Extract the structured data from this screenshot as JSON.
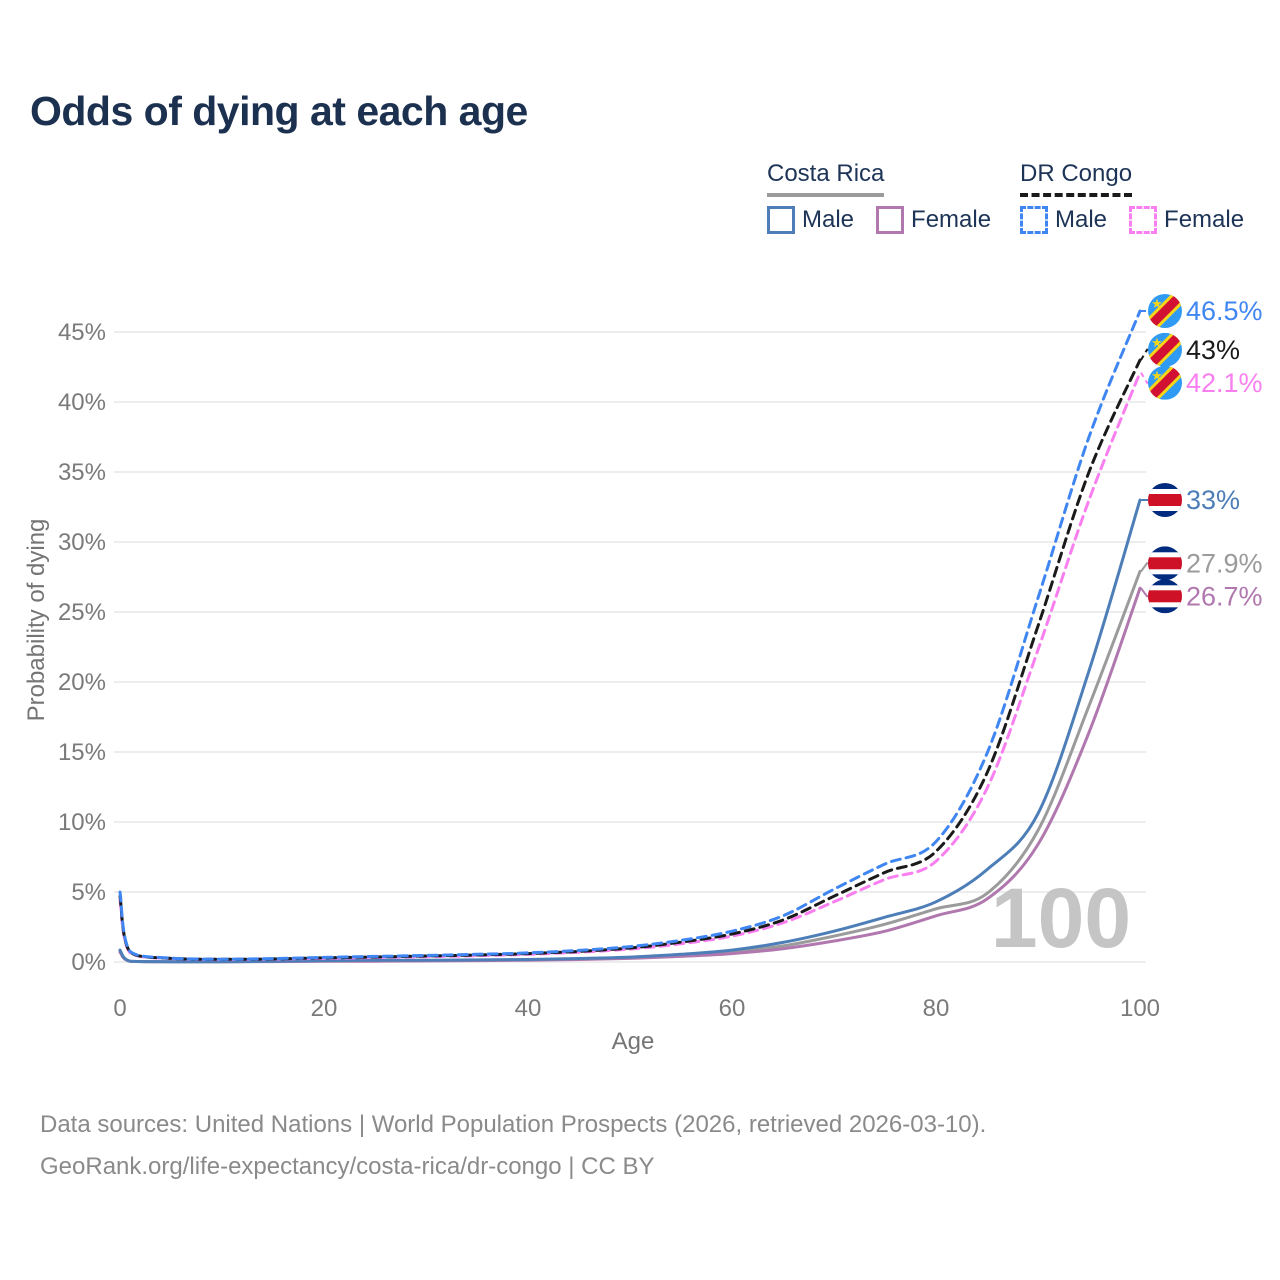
{
  "title": "Odds of dying at each age",
  "legend": {
    "groups": [
      {
        "name": "Costa Rica",
        "line_style": "solid",
        "underline_color": "#9b9b9b",
        "items": [
          {
            "label": "Male",
            "color": "#4d7eb8"
          },
          {
            "label": "Female",
            "color": "#b078ae"
          }
        ]
      },
      {
        "name": "DR Congo",
        "line_style": "dashed",
        "underline_color": "#1a1a1a",
        "items": [
          {
            "label": "Male",
            "color": "#3f86f2"
          },
          {
            "label": "Female",
            "color": "#f97ff0"
          }
        ]
      }
    ]
  },
  "chart_data": {
    "type": "line",
    "title": "Odds of dying at each age",
    "xlabel": "Age",
    "ylabel": "Probability of dying",
    "xlim": [
      0,
      100
    ],
    "ylim_percent": [
      0,
      47.5
    ],
    "xticks": [
      0,
      20,
      40,
      60,
      80,
      100
    ],
    "ytick_labels": [
      "0%",
      "5%",
      "10%",
      "15%",
      "20%",
      "25%",
      "30%",
      "35%",
      "40%",
      "45%"
    ],
    "grid": "horizontal",
    "watermark": "100",
    "ages": [
      0,
      1,
      5,
      10,
      15,
      20,
      25,
      30,
      35,
      40,
      45,
      50,
      55,
      60,
      65,
      70,
      75,
      80,
      85,
      90,
      95,
      100
    ],
    "series": [
      {
        "name": "Costa Rica — All",
        "country": "Costa Rica",
        "group": "all",
        "color": "#9b9b9b",
        "line_style": "solid",
        "flag": "costa-rica",
        "end_label": "27.9%",
        "values_percent": [
          0.78,
          0.055,
          0.018,
          0.018,
          0.04,
          0.08,
          0.09,
          0.1,
          0.12,
          0.15,
          0.21,
          0.3,
          0.47,
          0.72,
          1.15,
          1.85,
          2.7,
          3.8,
          4.9,
          9.4,
          18.3,
          27.9
        ]
      },
      {
        "name": "Costa Rica — Female",
        "country": "Costa Rica",
        "group": "Female",
        "color": "#b078ae",
        "line_style": "solid",
        "flag": "costa-rica",
        "end_label": "26.7%",
        "values_percent": [
          0.7,
          0.05,
          0.015,
          0.015,
          0.03,
          0.05,
          0.06,
          0.08,
          0.1,
          0.13,
          0.18,
          0.26,
          0.4,
          0.6,
          0.95,
          1.5,
          2.2,
          3.3,
          4.5,
          8.4,
          16.4,
          26.7
        ]
      },
      {
        "name": "Costa Rica — Male",
        "country": "Costa Rica",
        "group": "Male",
        "color": "#4d7eb8",
        "line_style": "solid",
        "flag": "costa-rica",
        "end_label": "33%",
        "values_percent": [
          0.85,
          0.06,
          0.02,
          0.02,
          0.05,
          0.1,
          0.12,
          0.13,
          0.15,
          0.18,
          0.25,
          0.35,
          0.55,
          0.85,
          1.4,
          2.2,
          3.2,
          4.3,
          6.6,
          10.6,
          20.8,
          33
        ]
      },
      {
        "name": "DR Congo — Female",
        "country": "DR Congo",
        "group": "Female",
        "color": "#f97ff0",
        "line_style": "dashed",
        "flag": "dr-congo",
        "end_label": "42.1%",
        "values_percent": [
          4.4,
          0.65,
          0.25,
          0.18,
          0.21,
          0.26,
          0.32,
          0.38,
          0.45,
          0.55,
          0.7,
          0.92,
          1.3,
          1.85,
          2.8,
          4.3,
          5.9,
          7.2,
          12.4,
          22.3,
          33.0,
          42.1
        ]
      },
      {
        "name": "DR Congo — All",
        "country": "DR Congo",
        "group": "all",
        "color": "#1a1a1a",
        "line_style": "dashed",
        "flag": "dr-congo",
        "end_label": "43%",
        "values_percent": [
          4.7,
          0.7,
          0.26,
          0.19,
          0.22,
          0.3,
          0.36,
          0.43,
          0.5,
          0.6,
          0.76,
          1.0,
          1.42,
          2.0,
          3.0,
          4.7,
          6.4,
          7.9,
          13.5,
          24.0,
          35.0,
          43.0
        ]
      },
      {
        "name": "DR Congo — Male",
        "country": "DR Congo",
        "group": "Male",
        "color": "#3f86f2",
        "line_style": "dashed",
        "flag": "dr-congo",
        "end_label": "46.5%",
        "values_percent": [
          5.0,
          0.74,
          0.28,
          0.2,
          0.24,
          0.33,
          0.4,
          0.47,
          0.55,
          0.65,
          0.83,
          1.1,
          1.55,
          2.2,
          3.3,
          5.2,
          7.0,
          8.6,
          14.9,
          26.0,
          37.5,
          46.5
        ]
      }
    ]
  },
  "footer": {
    "line1": "Data sources: United Nations | World Population Prospects (2026, retrieved 2026-03-10).",
    "line2": "GeoRank.org/life-expectancy/costa-rica/dr-congo | CC BY"
  }
}
